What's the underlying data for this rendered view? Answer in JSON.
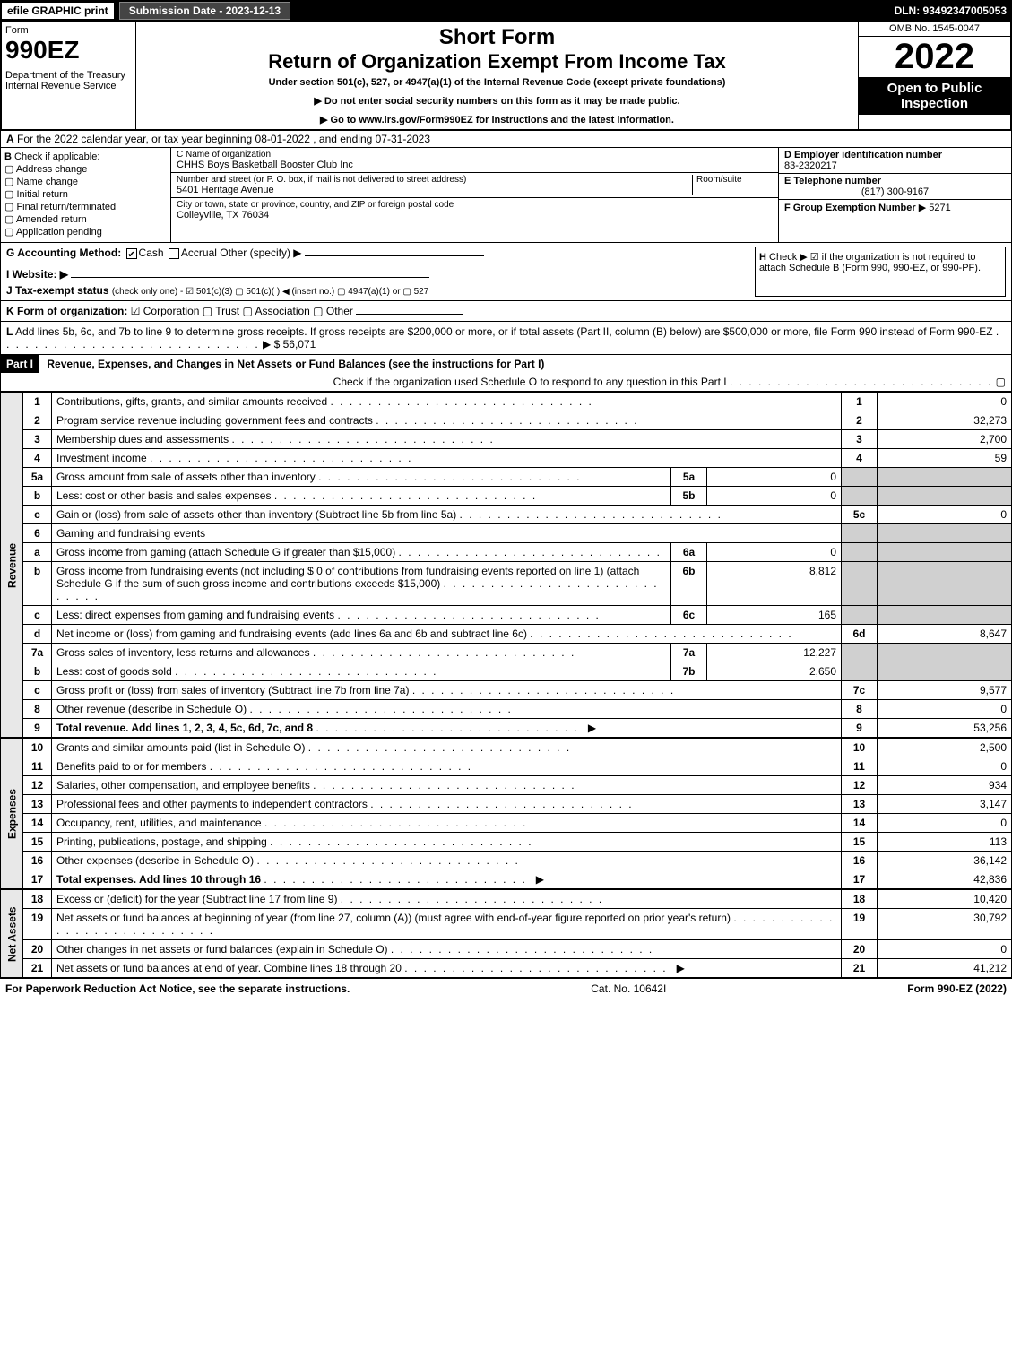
{
  "topbar": {
    "efile": "efile GRAPHIC print",
    "subdate": "Submission Date - 2023-12-13",
    "dln": "DLN: 93492347005053"
  },
  "header": {
    "form_label": "Form",
    "form_no": "990EZ",
    "dept": "Department of the Treasury\nInternal Revenue Service",
    "short_form": "Short Form",
    "title": "Return of Organization Exempt From Income Tax",
    "subtitle": "Under section 501(c), 527, or 4947(a)(1) of the Internal Revenue Code (except private foundations)",
    "note1": "▶ Do not enter social security numbers on this form as it may be made public.",
    "note2": "▶ Go to www.irs.gov/Form990EZ for instructions and the latest information.",
    "omb": "OMB No. 1545-0047",
    "year": "2022",
    "open": "Open to Public Inspection"
  },
  "A": {
    "label": "A",
    "text": "For the 2022 calendar year, or tax year beginning 08-01-2022 , and ending 07-31-2023"
  },
  "B": {
    "label": "B",
    "title": "Check if applicable:",
    "opts": [
      "Address change",
      "Name change",
      "Initial return",
      "Final return/terminated",
      "Amended return",
      "Application pending"
    ]
  },
  "C": {
    "name_label": "C Name of organization",
    "name": "CHHS Boys Basketball Booster Club Inc",
    "addr_label": "Number and street (or P. O. box, if mail is not delivered to street address)",
    "room_label": "Room/suite",
    "addr": "5401 Heritage Avenue",
    "city_label": "City or town, state or province, country, and ZIP or foreign postal code",
    "city": "Colleyville, TX  76034"
  },
  "D": {
    "label": "D Employer identification number",
    "ein": "83-2320217"
  },
  "E": {
    "label": "E Telephone number",
    "phone": "(817) 300-9167"
  },
  "F": {
    "label": "F Group Exemption Number",
    "val": "▶ 5271"
  },
  "G": {
    "label": "G Accounting Method:",
    "cash": "Cash",
    "accrual": "Accrual",
    "other": "Other (specify) ▶"
  },
  "H": {
    "label": "H",
    "text": "Check ▶ ☑ if the organization is not required to attach Schedule B (Form 990, 990-EZ, or 990-PF)."
  },
  "I": {
    "label": "I Website: ▶"
  },
  "J": {
    "label": "J Tax-exempt status",
    "text": "(check only one) - ☑ 501(c)(3)  ▢ 501(c)(  ) ◀ (insert no.)  ▢ 4947(a)(1) or  ▢ 527"
  },
  "K": {
    "label": "K Form of organization:",
    "text": "☑ Corporation   ▢ Trust   ▢ Association   ▢ Other"
  },
  "L": {
    "label": "L",
    "text": "Add lines 5b, 6c, and 7b to line 9 to determine gross receipts. If gross receipts are $200,000 or more, or if total assets (Part II, column (B) below) are $500,000 or more, file Form 990 instead of Form 990-EZ",
    "amount": "▶ $ 56,071"
  },
  "partI": {
    "label": "Part I",
    "title": "Revenue, Expenses, and Changes in Net Assets or Fund Balances (see the instructions for Part I)",
    "check": "Check if the organization used Schedule O to respond to any question in this Part I",
    "check_val": "▢"
  },
  "sections": {
    "revenue": "Revenue",
    "expenses": "Expenses",
    "netassets": "Net Assets"
  },
  "rows": [
    {
      "n": "1",
      "d": "Contributions, gifts, grants, and similar amounts received",
      "ln": "1",
      "amt": "0"
    },
    {
      "n": "2",
      "d": "Program service revenue including government fees and contracts",
      "ln": "2",
      "amt": "32,273"
    },
    {
      "n": "3",
      "d": "Membership dues and assessments",
      "ln": "3",
      "amt": "2,700"
    },
    {
      "n": "4",
      "d": "Investment income",
      "ln": "4",
      "amt": "59"
    },
    {
      "n": "5a",
      "d": "Gross amount from sale of assets other than inventory",
      "sn": "5a",
      "sv": "0",
      "grey": true
    },
    {
      "n": "b",
      "d": "Less: cost or other basis and sales expenses",
      "sn": "5b",
      "sv": "0",
      "grey": true
    },
    {
      "n": "c",
      "d": "Gain or (loss) from sale of assets other than inventory (Subtract line 5b from line 5a)",
      "ln": "5c",
      "amt": "0"
    },
    {
      "n": "6",
      "d": "Gaming and fundraising events",
      "grey": true,
      "noamt": true
    },
    {
      "n": "a",
      "d": "Gross income from gaming (attach Schedule G if greater than $15,000)",
      "sn": "6a",
      "sv": "0",
      "grey": true
    },
    {
      "n": "b",
      "d": "Gross income from fundraising events (not including $  0          of contributions from fundraising events reported on line 1) (attach Schedule G if the sum of such gross income and contributions exceeds $15,000)",
      "sn": "6b",
      "sv": "8,812",
      "grey": true
    },
    {
      "n": "c",
      "d": "Less: direct expenses from gaming and fundraising events",
      "sn": "6c",
      "sv": "165",
      "grey": true
    },
    {
      "n": "d",
      "d": "Net income or (loss) from gaming and fundraising events (add lines 6a and 6b and subtract line 6c)",
      "ln": "6d",
      "amt": "8,647"
    },
    {
      "n": "7a",
      "d": "Gross sales of inventory, less returns and allowances",
      "sn": "7a",
      "sv": "12,227",
      "grey": true
    },
    {
      "n": "b",
      "d": "Less: cost of goods sold",
      "sn": "7b",
      "sv": "2,650",
      "grey": true
    },
    {
      "n": "c",
      "d": "Gross profit or (loss) from sales of inventory (Subtract line 7b from line 7a)",
      "ln": "7c",
      "amt": "9,577"
    },
    {
      "n": "8",
      "d": "Other revenue (describe in Schedule O)",
      "ln": "8",
      "amt": "0"
    },
    {
      "n": "9",
      "d": "Total revenue. Add lines 1, 2, 3, 4, 5c, 6d, 7c, and 8",
      "ln": "9",
      "amt": "53,256",
      "bold": true,
      "arrow": true
    }
  ],
  "exp_rows": [
    {
      "n": "10",
      "d": "Grants and similar amounts paid (list in Schedule O)",
      "ln": "10",
      "amt": "2,500"
    },
    {
      "n": "11",
      "d": "Benefits paid to or for members",
      "ln": "11",
      "amt": "0"
    },
    {
      "n": "12",
      "d": "Salaries, other compensation, and employee benefits",
      "ln": "12",
      "amt": "934"
    },
    {
      "n": "13",
      "d": "Professional fees and other payments to independent contractors",
      "ln": "13",
      "amt": "3,147"
    },
    {
      "n": "14",
      "d": "Occupancy, rent, utilities, and maintenance",
      "ln": "14",
      "amt": "0"
    },
    {
      "n": "15",
      "d": "Printing, publications, postage, and shipping",
      "ln": "15",
      "amt": "113"
    },
    {
      "n": "16",
      "d": "Other expenses (describe in Schedule O)",
      "ln": "16",
      "amt": "36,142"
    },
    {
      "n": "17",
      "d": "Total expenses. Add lines 10 through 16",
      "ln": "17",
      "amt": "42,836",
      "bold": true,
      "arrow": true
    }
  ],
  "na_rows": [
    {
      "n": "18",
      "d": "Excess or (deficit) for the year (Subtract line 17 from line 9)",
      "ln": "18",
      "amt": "10,420"
    },
    {
      "n": "19",
      "d": "Net assets or fund balances at beginning of year (from line 27, column (A)) (must agree with end-of-year figure reported on prior year's return)",
      "ln": "19",
      "amt": "30,792"
    },
    {
      "n": "20",
      "d": "Other changes in net assets or fund balances (explain in Schedule O)",
      "ln": "20",
      "amt": "0"
    },
    {
      "n": "21",
      "d": "Net assets or fund balances at end of year. Combine lines 18 through 20",
      "ln": "21",
      "amt": "41,212",
      "arrow": true
    }
  ],
  "footer": {
    "left": "For Paperwork Reduction Act Notice, see the separate instructions.",
    "mid": "Cat. No. 10642I",
    "right": "Form 990-EZ (2022)"
  }
}
